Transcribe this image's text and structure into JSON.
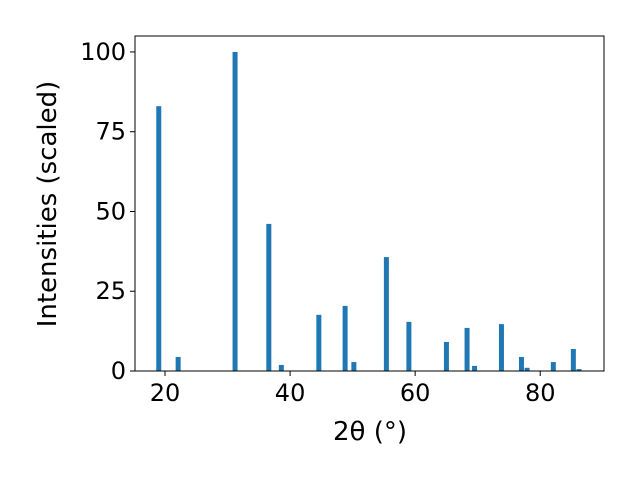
{
  "chart_data": {
    "type": "bar",
    "xlabel": "2θ (°)",
    "ylabel": "Intensities (scaled)",
    "x": [
      19.0,
      22.1,
      31.2,
      36.6,
      38.6,
      44.6,
      48.8,
      50.2,
      55.4,
      59.0,
      65.0,
      68.3,
      69.5,
      73.8,
      77.0,
      77.9,
      82.1,
      85.3,
      86.2
    ],
    "values": [
      83,
      4.4,
      100,
      46.1,
      1.9,
      17.6,
      20.4,
      2.8,
      35.7,
      15.4,
      9.1,
      13.5,
      1.6,
      14.7,
      4.4,
      1.0,
      2.8,
      6.9,
      0.6
    ],
    "color": "#1f77b4",
    "xlim": [
      15.2,
      90.2
    ],
    "ylim": [
      0,
      105
    ],
    "xticks": [
      20,
      40,
      60,
      80
    ],
    "yticks": [
      0,
      25,
      50,
      75,
      100
    ]
  }
}
